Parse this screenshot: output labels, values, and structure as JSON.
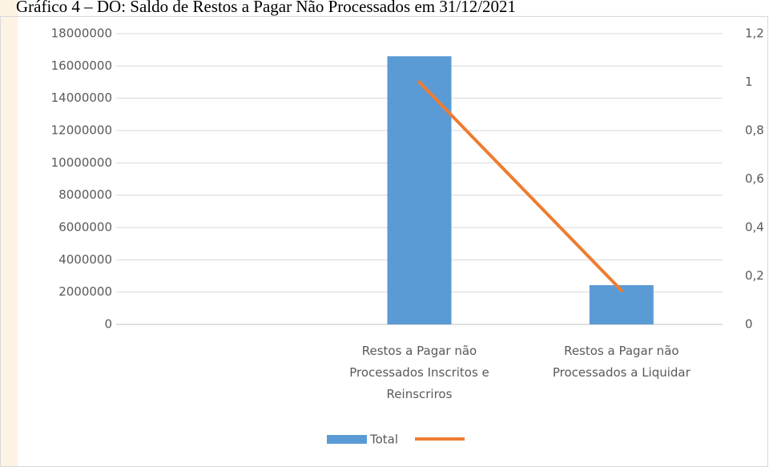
{
  "chart_data": {
    "type": "bar_line",
    "title": "Gráfico 4 – DO: Saldo de Restos a Pagar Não Processados em 31/12/2021",
    "categories": [
      null,
      "Restos a Pagar não Processados Inscritos e Reinscriros",
      "Restos a Pagar não Processados a Liquidar"
    ],
    "series": [
      {
        "name": "Total",
        "type": "bar",
        "color": "#5b9bd5",
        "values": [
          null,
          16600000,
          2430000
        ]
      },
      {
        "type": "line",
        "axis": "y2",
        "color": "#ed7d31",
        "values": [
          null,
          1,
          0.14
        ]
      }
    ],
    "ylim": [
      0,
      18000000
    ],
    "yticks": [
      0,
      2000000,
      4000000,
      6000000,
      8000000,
      10000000,
      12000000,
      14000000,
      16000000,
      18000000
    ],
    "y2lim": [
      0,
      1.2
    ],
    "y2ticks": [
      0,
      {
        "value": 0.2,
        "label": "0,2"
      },
      {
        "value": 0.4,
        "label": "0,4"
      },
      {
        "value": 0.6,
        "label": "0,6"
      },
      {
        "value": 0.8,
        "label": "0,8"
      },
      1,
      {
        "value": 1.2,
        "label": "1,2"
      }
    ],
    "grid": true,
    "legend": "bottom"
  }
}
